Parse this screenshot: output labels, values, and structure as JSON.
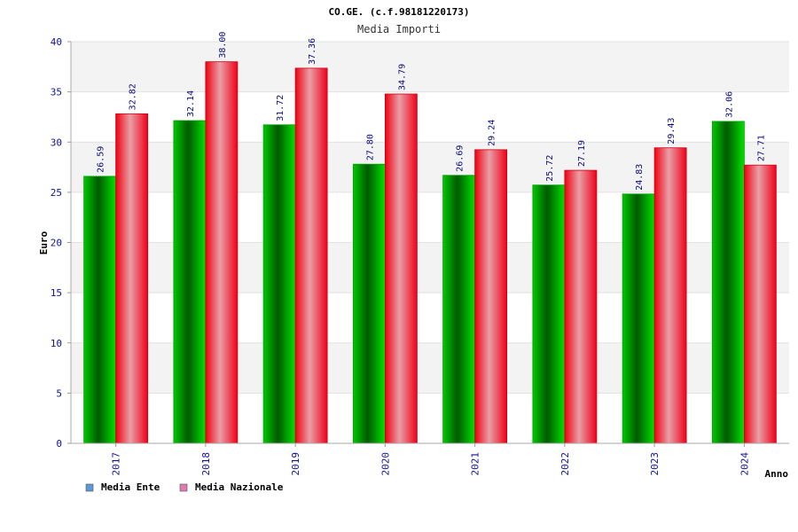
{
  "chart_data": {
    "type": "bar",
    "title": "CO.GE. (c.f.98181220173)",
    "subtitle": "Media Importi",
    "xlabel": "Anno",
    "ylabel": "Euro",
    "ylim": [
      0,
      40
    ],
    "yticks": [
      0,
      5,
      10,
      15,
      20,
      25,
      30,
      35,
      40
    ],
    "categories": [
      "2017",
      "2018",
      "2019",
      "2020",
      "2021",
      "2022",
      "2023",
      "2024"
    ],
    "series": [
      {
        "name": "Media Ente",
        "values": [
          26.59,
          32.14,
          31.72,
          27.8,
          26.69,
          25.72,
          24.83,
          32.06
        ],
        "labels": [
          "26.59",
          "32.14",
          "31.72",
          "27.80",
          "26.69",
          "25.72",
          "24.83",
          "32.06"
        ],
        "color": "#00b000",
        "legend_color": "#5b9bd5"
      },
      {
        "name": "Media Nazionale",
        "values": [
          32.82,
          38.0,
          37.36,
          34.79,
          29.24,
          27.19,
          29.43,
          27.71
        ],
        "labels": [
          "32.82",
          "38.00",
          "37.36",
          "34.79",
          "29.24",
          "27.19",
          "29.43",
          "27.71"
        ],
        "color": "#f01020",
        "legend_color": "#e07ab0"
      }
    ],
    "grid": true,
    "legend_position": "bottom-left"
  }
}
